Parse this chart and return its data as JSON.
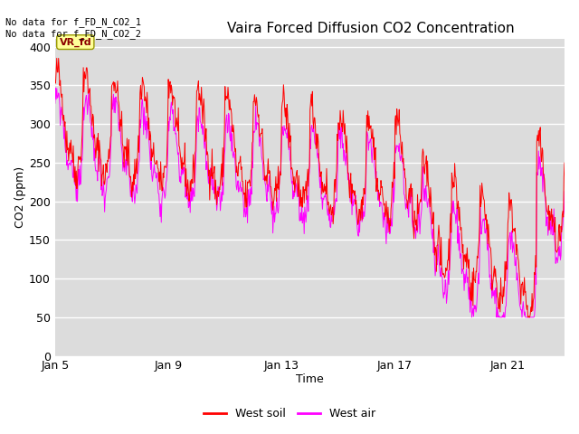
{
  "title": "Vaira Forced Diffusion CO2 Concentration",
  "xlabel": "Time",
  "ylabel": "CO2 (ppm)",
  "ylim": [
    0,
    410
  ],
  "yticks": [
    0,
    50,
    100,
    150,
    200,
    250,
    300,
    350,
    400
  ],
  "xtick_labels": [
    "Jan 5",
    "Jan 9",
    "Jan 13",
    "Jan 17",
    "Jan 21"
  ],
  "xtick_positions": [
    0,
    4,
    8,
    12,
    16
  ],
  "soil_color": "#FF0000",
  "air_color": "#FF00FF",
  "legend_labels": [
    "West soil",
    "West air"
  ],
  "annotation_text": "No data for f_FD_N_CO2_1\nNo data for f_FD_N_CO2_2",
  "tag_text": "VR_fd",
  "tag_bg": "#FFFF99",
  "tag_border": "#999900",
  "bg_color": "#DCDCDC",
  "fig_bg": "#FFFFFF",
  "title_fontsize": 11,
  "axis_fontsize": 9,
  "tick_fontsize": 9,
  "n_days": 18,
  "seed": 42
}
